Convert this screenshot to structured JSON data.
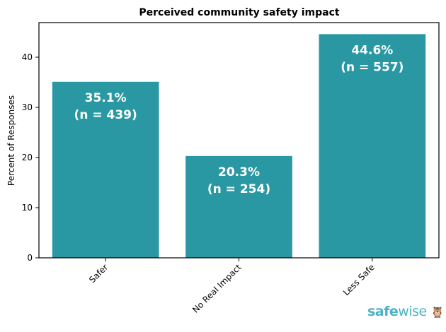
{
  "chart_data": {
    "type": "bar",
    "title": "Perceived community safety impact",
    "xlabel": "",
    "ylabel": "Percent of Responses",
    "categories": [
      "Safer",
      "No Real Impact",
      "Less Safe"
    ],
    "values": [
      35.1,
      20.3,
      44.6
    ],
    "data_labels": [
      [
        "35.1%",
        "(n = 439)"
      ],
      [
        "20.3%",
        "(n = 254)"
      ],
      [
        "44.6%",
        "(n = 557)"
      ]
    ],
    "ylim": [
      0,
      46.9
    ],
    "yticks": [
      0,
      10,
      20,
      30,
      40
    ],
    "grid": false,
    "bar_color": "#2a98a3"
  },
  "logo": {
    "text_bold": "safe",
    "text_light": "wise",
    "color": "#4bb3c4"
  }
}
